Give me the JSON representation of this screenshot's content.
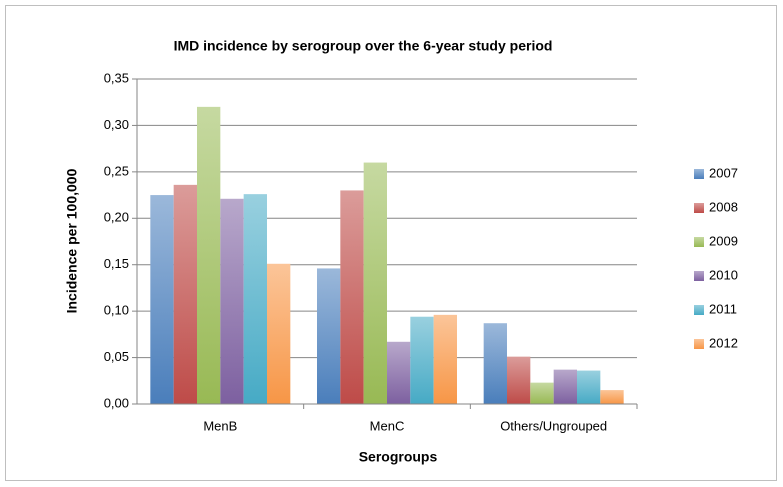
{
  "chart_data": {
    "type": "bar",
    "title": "IMD incidence by serogroup over the 6-year study period",
    "xlabel": "Serogroups",
    "ylabel": "Incidence per 100,000",
    "categories": [
      "MenB",
      "MenC",
      "Others/Ungrouped"
    ],
    "series": [
      {
        "name": "2007",
        "color": "#4a7ebb",
        "values": [
          0.225,
          0.146,
          0.087
        ]
      },
      {
        "name": "2008",
        "color": "#be4b48",
        "values": [
          0.236,
          0.23,
          0.051
        ]
      },
      {
        "name": "2009",
        "color": "#98b954",
        "values": [
          0.32,
          0.26,
          0.023
        ]
      },
      {
        "name": "2010",
        "color": "#7d60a0",
        "values": [
          0.221,
          0.067,
          0.037
        ]
      },
      {
        "name": "2011",
        "color": "#46aac5",
        "values": [
          0.226,
          0.094,
          0.036
        ]
      },
      {
        "name": "2012",
        "color": "#f79646",
        "values": [
          0.151,
          0.096,
          0.015
        ]
      }
    ],
    "ylim": [
      0,
      0.35
    ],
    "yticks": [
      {
        "value": 0,
        "label": "0,00"
      },
      {
        "value": 0.05,
        "label": "0,05"
      },
      {
        "value": 0.1,
        "label": "0,10"
      },
      {
        "value": 0.15,
        "label": "0,15"
      },
      {
        "value": 0.2,
        "label": "0,20"
      },
      {
        "value": 0.25,
        "label": "0,25"
      },
      {
        "value": 0.3,
        "label": "0,30"
      },
      {
        "value": 0.35,
        "label": "0,35"
      }
    ],
    "grid": true,
    "legend": "right"
  }
}
